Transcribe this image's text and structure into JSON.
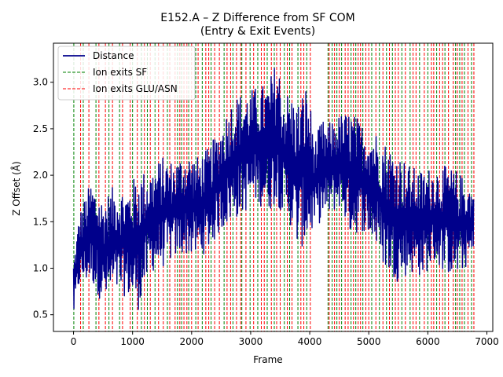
{
  "chart_data": {
    "type": "line",
    "title": "E152.A – Z Difference from SF COM",
    "subtitle": "(Entry & Exit Events)",
    "xlabel": "Frame",
    "ylabel": "Z Offset (Å)",
    "xlim": [
      -340,
      7100
    ],
    "ylim": [
      0.32,
      3.42
    ],
    "xticks": [
      0,
      1000,
      2000,
      3000,
      4000,
      5000,
      6000,
      7000
    ],
    "yticks": [
      0.5,
      1.0,
      1.5,
      2.0,
      2.5,
      3.0
    ],
    "xtick_labels": [
      "0",
      "1000",
      "2000",
      "3000",
      "4000",
      "5000",
      "6000",
      "7000"
    ],
    "ytick_labels": [
      "0.5",
      "1.0",
      "1.5",
      "2.0",
      "2.5",
      "3.0"
    ],
    "legend_position": "upper-left",
    "colors": {
      "distance": "#00008b",
      "sf_exit": "#008000",
      "glu_exit": "#ff0000"
    },
    "series": [
      {
        "name": "Distance",
        "style": "solid",
        "frame_range": [
          0,
          6780
        ],
        "envelope": {
          "x": [
            0,
            100,
            300,
            500,
            700,
            900,
            1100,
            1300,
            1500,
            1700,
            1900,
            2100,
            2300,
            2500,
            2700,
            2900,
            3100,
            3300,
            3450,
            3550,
            3650,
            3800,
            3950,
            4100,
            4200,
            4300,
            4500,
            4700,
            4900,
            5100,
            5300,
            5500,
            5700,
            5900,
            6100,
            6300,
            6500,
            6780
          ],
          "low": [
            0.45,
            0.8,
            0.85,
            0.6,
            0.7,
            0.7,
            0.55,
            0.95,
            1.0,
            1.1,
            1.15,
            1.1,
            1.2,
            1.4,
            1.5,
            1.6,
            1.7,
            1.6,
            1.7,
            1.55,
            1.5,
            1.2,
            1.25,
            1.45,
            1.5,
            1.55,
            1.65,
            1.35,
            1.4,
            1.25,
            0.95,
            0.85,
            0.95,
            0.9,
            1.05,
            0.95,
            0.9,
            1.1
          ],
          "high": [
            1.1,
            1.6,
            1.95,
            1.75,
            1.9,
            1.85,
            2.05,
            2.05,
            2.2,
            2.15,
            2.25,
            2.2,
            2.3,
            2.55,
            2.85,
            2.9,
            2.95,
            3.0,
            3.28,
            2.9,
            2.9,
            2.8,
            3.0,
            2.4,
            2.6,
            2.55,
            2.65,
            2.7,
            2.55,
            2.5,
            2.35,
            2.25,
            2.1,
            2.05,
            2.1,
            2.1,
            2.05,
            1.85
          ]
        }
      },
      {
        "name": "Ion exits SF",
        "style": "dashed",
        "event_frames": [
          5,
          165,
          380,
          600,
          780,
          1000,
          1150,
          1250,
          1380,
          1590,
          1760,
          1830,
          1950,
          2070,
          2180,
          2330,
          2550,
          2700,
          2850,
          2990,
          3120,
          3280,
          3400,
          3570,
          3660,
          3800,
          3950,
          4310,
          4380,
          4460,
          4540,
          4700,
          4780,
          4900,
          5050,
          5180,
          5300,
          5400,
          5560,
          5700,
          5860,
          6000,
          6150,
          6290,
          6470,
          6540,
          6620,
          6740
        ]
      },
      {
        "name": "Ion exits GLU/ASN",
        "style": "dashed",
        "event_frames": [
          120,
          260,
          430,
          540,
          660,
          830,
          960,
          1080,
          1200,
          1300,
          1440,
          1520,
          1630,
          1720,
          1800,
          1870,
          1920,
          2000,
          2110,
          2240,
          2290,
          2390,
          2470,
          2600,
          2660,
          2760,
          2830,
          2920,
          3050,
          3180,
          3230,
          3350,
          3440,
          3500,
          3620,
          3700,
          3850,
          3900,
          4010,
          4330,
          4420,
          4500,
          4600,
          4650,
          4740,
          4820,
          4860,
          4950,
          5000,
          5120,
          5240,
          5350,
          5450,
          5500,
          5620,
          5750,
          5800,
          5940,
          6060,
          6100,
          6200,
          6250,
          6350,
          6430,
          6500,
          6580,
          6680,
          6780
        ]
      }
    ]
  }
}
